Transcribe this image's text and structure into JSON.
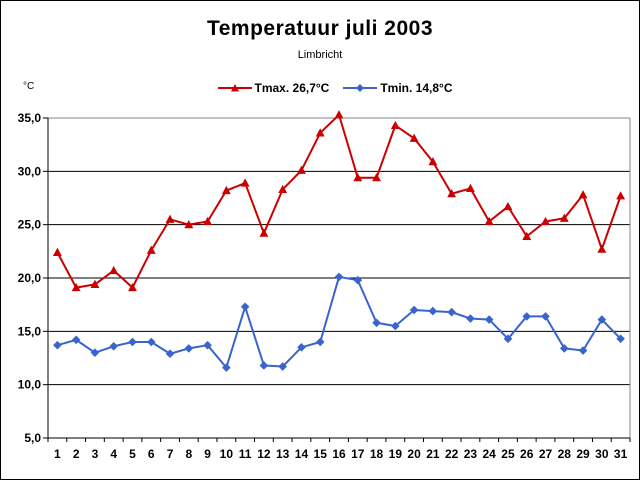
{
  "title": "Temperatuur juli 2003",
  "subtitle": "Limbricht",
  "chart_data": {
    "type": "line",
    "title": "Temperatuur juli 2003",
    "subtitle": "Limbricht",
    "ylabel": "°C",
    "xlabel": "",
    "ylim": [
      5,
      35
    ],
    "grid": true,
    "legend_position": "top-center",
    "yticks": [
      5,
      10,
      15,
      20,
      25,
      30,
      35
    ],
    "ytick_labels": [
      "5,0",
      "10,0",
      "15,0",
      "20,0",
      "25,0",
      "30,0",
      "35,0"
    ],
    "categories": [
      1,
      2,
      3,
      4,
      5,
      6,
      7,
      8,
      9,
      10,
      11,
      12,
      13,
      14,
      15,
      16,
      17,
      18,
      19,
      20,
      21,
      22,
      23,
      24,
      25,
      26,
      27,
      28,
      29,
      30,
      31
    ],
    "series": [
      {
        "name": "Tmax. 26,7°C",
        "color": "#cc0000",
        "marker": "triangle",
        "values": [
          22.4,
          19.1,
          19.4,
          20.7,
          19.1,
          22.6,
          25.5,
          25.0,
          25.3,
          28.2,
          28.9,
          24.2,
          28.3,
          30.1,
          33.6,
          35.3,
          29.4,
          29.4,
          34.3,
          33.1,
          30.9,
          27.9,
          28.4,
          25.3,
          26.7,
          23.9,
          25.3,
          25.6,
          27.8,
          22.7,
          27.7
        ]
      },
      {
        "name": "Tmin. 14,8°C",
        "color": "#3a64cd",
        "marker": "diamond",
        "values": [
          13.7,
          14.2,
          13.0,
          13.6,
          14.0,
          14.0,
          12.9,
          13.4,
          13.7,
          11.6,
          17.3,
          11.8,
          11.7,
          13.5,
          14.0,
          20.1,
          19.8,
          15.8,
          15.5,
          17.0,
          16.9,
          16.8,
          16.2,
          16.1,
          14.3,
          16.4,
          16.4,
          13.4,
          13.2,
          16.1,
          14.3
        ]
      }
    ],
    "colors": {
      "gridline": "#000000",
      "plot_border": "#848484",
      "axis": "#000000",
      "background": "#ffffff"
    }
  }
}
